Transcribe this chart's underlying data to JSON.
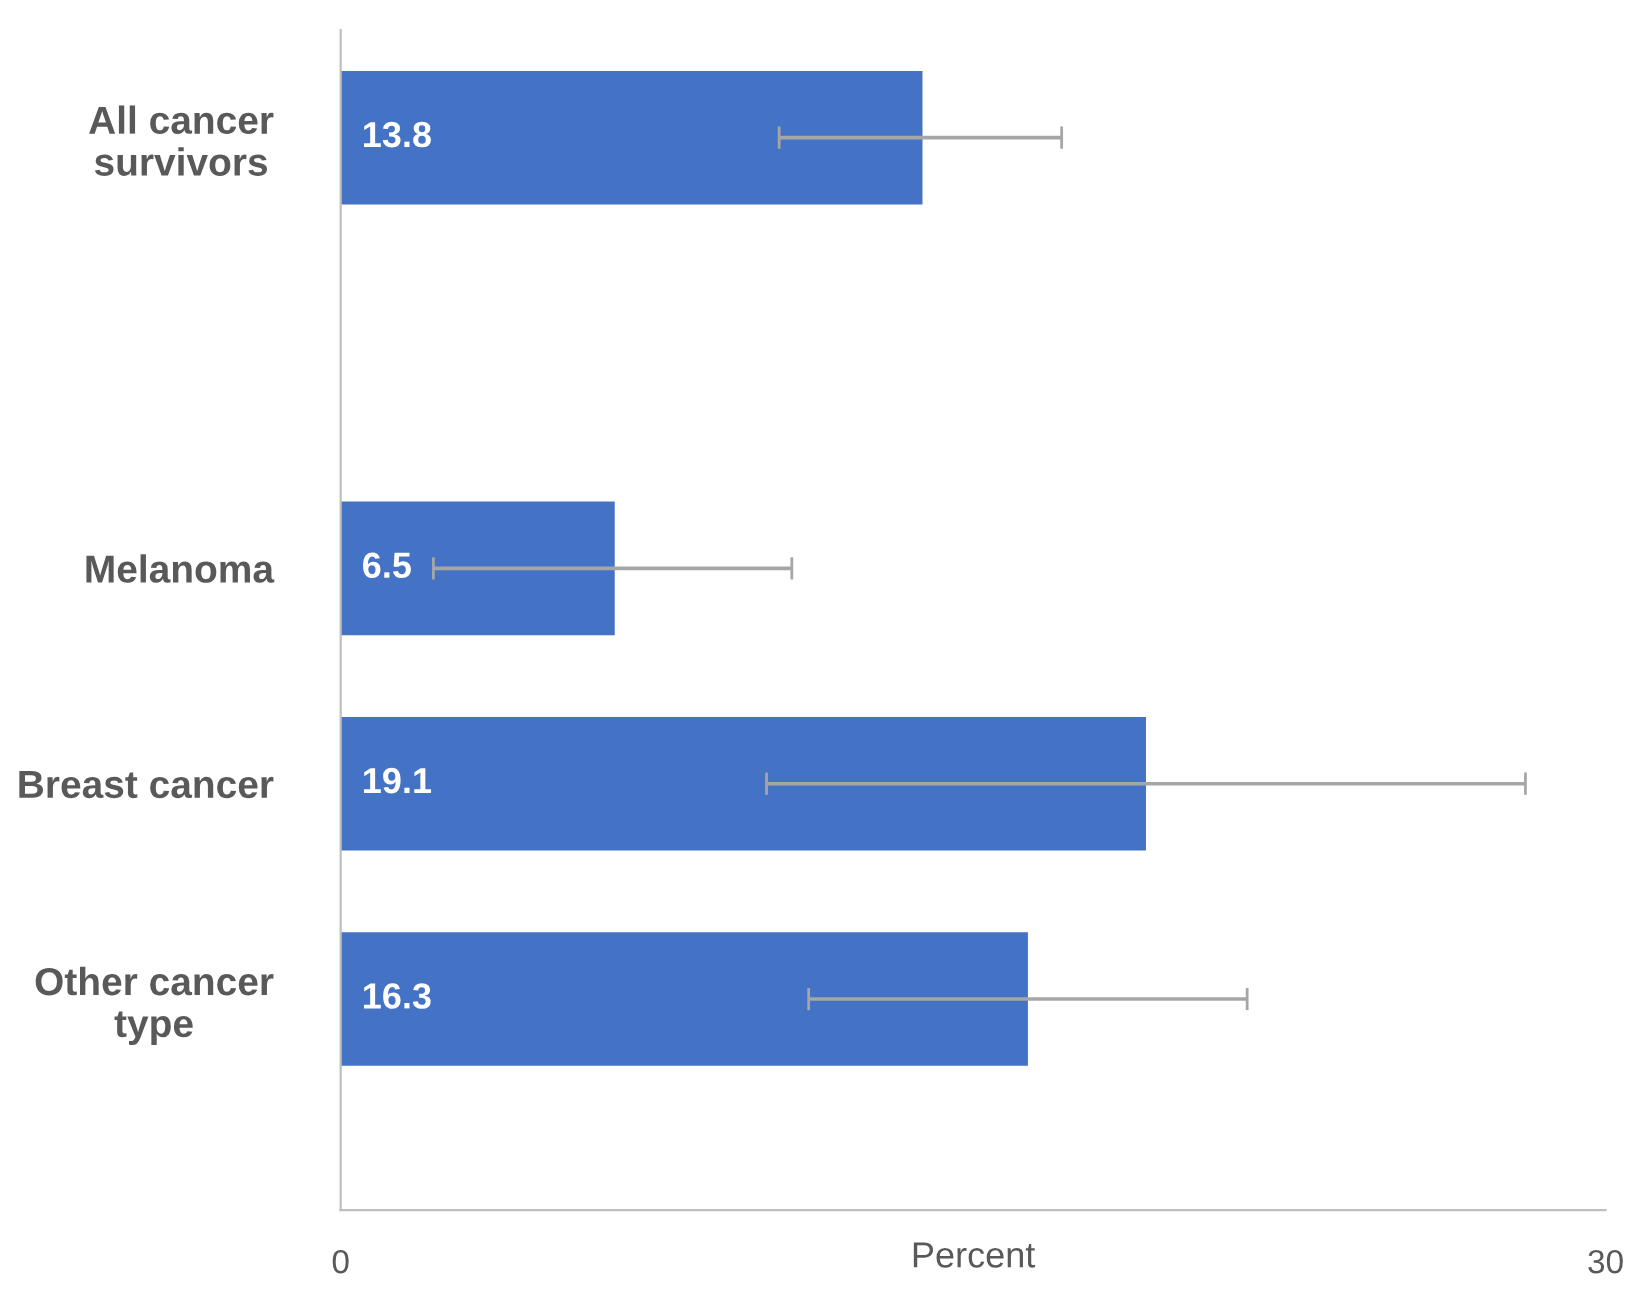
{
  "chart_data": {
    "type": "bar",
    "orientation": "horizontal",
    "xlabel": "Percent",
    "categories": [
      "All cancer survivors",
      null,
      "Melanoma",
      "Breast cancer",
      "Other cancer type"
    ],
    "values": [
      13.8,
      null,
      6.5,
      19.1,
      16.3
    ],
    "errors": [
      [
        10.4,
        17.1
      ],
      null,
      [
        2.2,
        10.7
      ],
      [
        10.1,
        28.1
      ],
      [
        11.1,
        21.5
      ]
    ],
    "color": "#4472c4",
    "xlim": [
      0,
      30
    ],
    "xticks": [
      0,
      30
    ],
    "data_labels": true,
    "grid": false,
    "legend": false
  }
}
